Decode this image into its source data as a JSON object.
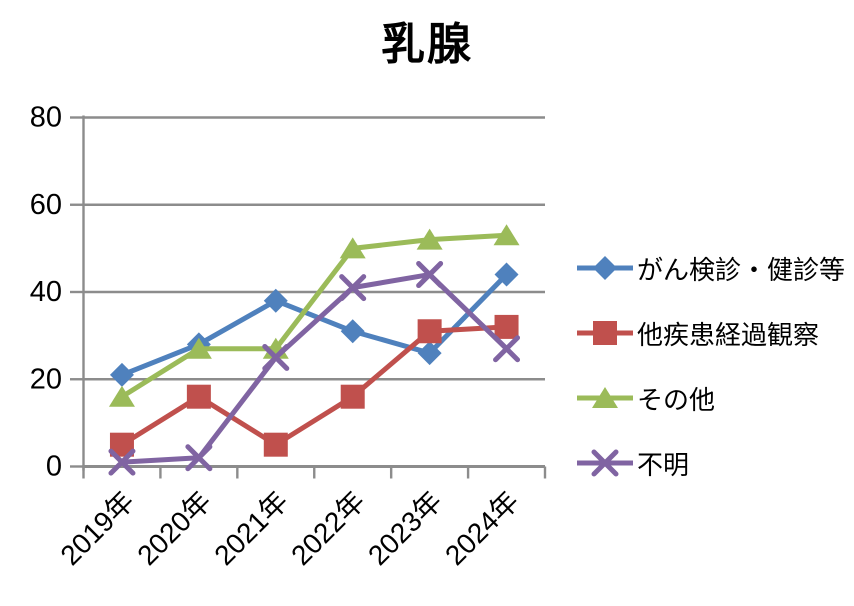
{
  "chart_data": {
    "type": "line",
    "title": "乳腺",
    "categories": [
      "2019年",
      "2020年",
      "2021年",
      "2022年",
      "2023年",
      "2024年"
    ],
    "series": [
      {
        "name": "がん検診・健診等",
        "color": "#4F81BD",
        "marker": "diamond",
        "values": [
          21,
          28,
          38,
          31,
          26,
          44
        ]
      },
      {
        "name": "他疾患経過観察",
        "color": "#C0504D",
        "marker": "square",
        "values": [
          5,
          16,
          5,
          16,
          31,
          32
        ]
      },
      {
        "name": "その他",
        "color": "#9BBB59",
        "marker": "triangle",
        "values": [
          16,
          27,
          27,
          50,
          52,
          53
        ]
      },
      {
        "name": "不明",
        "color": "#8064A2",
        "marker": "x",
        "values": [
          1,
          2,
          25,
          41,
          44,
          27
        ]
      }
    ],
    "xlabel": "",
    "ylabel": "",
    "ylim": [
      0,
      80
    ],
    "yticks": [
      0,
      20,
      40,
      60,
      80
    ],
    "grid": true,
    "legend_position": "right",
    "axis_color": "#8C8C8C",
    "grid_color": "#8C8C8C",
    "text_color": "#000000",
    "background_color": "#FFFFFF"
  }
}
